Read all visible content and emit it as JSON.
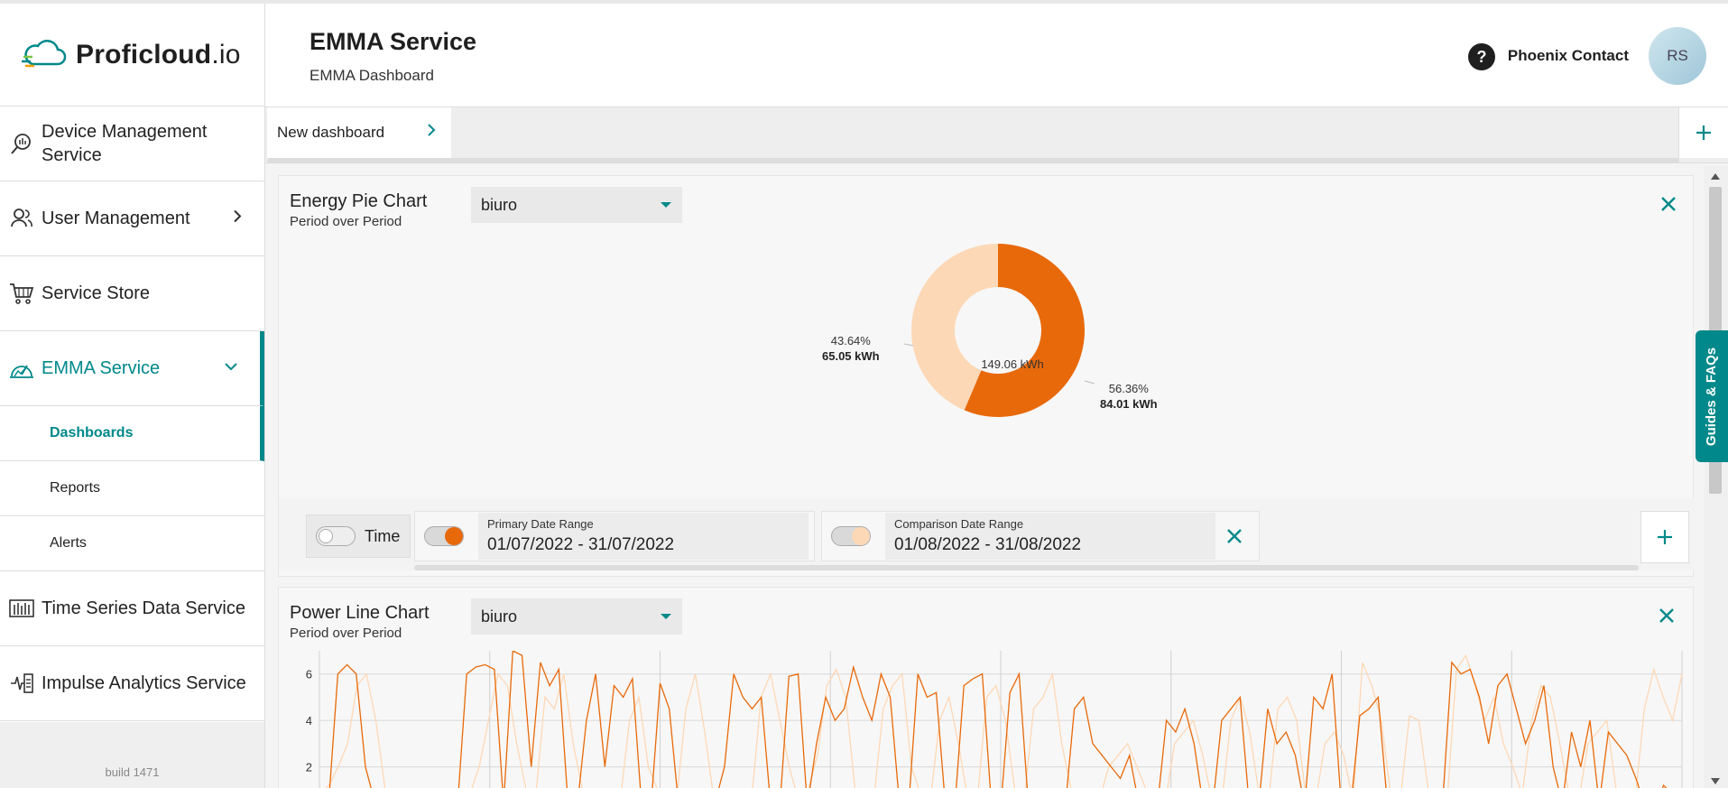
{
  "sidebar": {
    "logo_main": "Proficloud",
    "logo_suffix": ".io",
    "items": [
      {
        "label": "Device Management Service",
        "icon": "device-icon"
      },
      {
        "label": "User Management",
        "icon": "users-icon"
      },
      {
        "label": "Service Store",
        "icon": "cart-icon"
      },
      {
        "label": "EMMA Service",
        "icon": "gauge-icon"
      }
    ],
    "emma_subitems": [
      "Dashboards",
      "Reports",
      "Alerts"
    ],
    "more_items": [
      {
        "label": "Time Series Data Service",
        "icon": "bars-icon"
      },
      {
        "label": "Impulse Analytics Service",
        "icon": "analytics-icon"
      }
    ],
    "build": "build 1471"
  },
  "header": {
    "title": "EMMA Service",
    "subtitle": "EMMA Dashboard",
    "company": "Phoenix Contact",
    "avatar_initials": "RS",
    "help_label": "?"
  },
  "tabs": [
    {
      "label": "New dashboard"
    }
  ],
  "guides_label": "Guides & FAQs",
  "pie_card": {
    "title": "Energy Pie Chart",
    "subtitle": "Period over Period",
    "select_value": "biuro",
    "center_label": "149.06 kWh",
    "left_pct": "43.64%",
    "left_val": "65.05 kWh",
    "right_pct": "56.36%",
    "right_val": "84.01 kWh"
  },
  "controls": {
    "time_label": "Time",
    "primary_label": "Primary Date Range",
    "primary_value": "01/07/2022 - 31/07/2022",
    "comparison_label": "Comparison Date Range",
    "comparison_value": "01/08/2022 - 31/08/2022"
  },
  "line_card": {
    "title": "Power Line Chart",
    "subtitle": "Period over Period",
    "select_value": "biuro"
  },
  "chart_data": [
    {
      "type": "pie",
      "labels": [
        "01/07/2022 - 31/07/2022",
        "01/08/2022 - 31/08/2022"
      ],
      "values": [
        84.01,
        65.05
      ],
      "percentages": [
        56.36,
        43.64
      ],
      "colors": [
        "#e8690a",
        "#fdd8b6"
      ],
      "center": "149.06 kWh"
    },
    {
      "type": "line",
      "yticks": [
        2,
        4,
        6
      ],
      "ylim": [
        0,
        7
      ],
      "series": [
        {
          "color": "#e8690a",
          "values": [
            0.3,
            0.4,
            6,
            6.4,
            6,
            2,
            0.5,
            0.3,
            0.2,
            0.3,
            0.4,
            0.3,
            0.2,
            0.3,
            0.2,
            0.3,
            6,
            6.3,
            6.4,
            6.2,
            0.4,
            7,
            6.8,
            2,
            6.5,
            5.5,
            6.2,
            0.4,
            0.3,
            4,
            6,
            2,
            5.5,
            5,
            5.8,
            0.3,
            0.2,
            5.6,
            4.5,
            0.4,
            0.3,
            0.2,
            0.3,
            0.5,
            2,
            6,
            5,
            4.5,
            5,
            0.4,
            0.2,
            5.9,
            6,
            0.3,
            3,
            5,
            4,
            4.5,
            6.3,
            5,
            4,
            6,
            5,
            0.4,
            0.3,
            6,
            5,
            5.2,
            0.3,
            0.2,
            5.5,
            5.8,
            6,
            0.3,
            0.2,
            5.2,
            6,
            0.4,
            0.3,
            0.2,
            0.3,
            0.2,
            4.5,
            5,
            3,
            2.5,
            2,
            1.5,
            2.5,
            0.4,
            0.3,
            0.2,
            4,
            3.5,
            4.5,
            3,
            0.3,
            0.2,
            4,
            4.5,
            5,
            0.3,
            0.2,
            4.5,
            3,
            3.5,
            2.5,
            0.3,
            5,
            4.5,
            6,
            0.3,
            0.2,
            4.2,
            4.5,
            5,
            0.4,
            0.3,
            0.2,
            0.3,
            0.2,
            0.3,
            0.4,
            6.5,
            6,
            6.2,
            5,
            3,
            5.5,
            6,
            4.5,
            3,
            4,
            5.5,
            2,
            0.4,
            3.5,
            2,
            4,
            0.4,
            3.5,
            3,
            2.5,
            1.5,
            0.3,
            0.2,
            1.2,
            0.8,
            0.3
          ]
        },
        {
          "color": "#fdd8b6",
          "values": [
            0.8,
            1.2,
            2,
            3,
            5.5,
            6,
            4,
            1,
            0.5,
            0.6,
            0.4,
            0.5,
            0.7,
            0.4,
            0.5,
            0.6,
            0.8,
            2,
            4,
            6,
            5.5,
            3,
            1,
            0.6,
            5,
            4.5,
            6,
            3,
            1,
            0.5,
            0.4,
            0.6,
            0.5,
            4,
            5,
            2,
            1,
            0.6,
            0.5,
            4.5,
            6,
            3.5,
            0.5,
            0.4,
            0.3,
            0.5,
            0.6,
            5,
            6,
            4,
            2,
            0.5,
            1,
            2.5,
            5.5,
            6.2,
            5,
            1,
            0.5,
            0.6,
            4.5,
            5.5,
            6,
            2,
            0.8,
            0.5,
            4,
            5,
            3,
            0.6,
            0.5,
            5,
            5.5,
            4,
            1,
            0.5,
            4.5,
            5,
            6,
            3,
            1,
            0.5,
            0.4,
            0.6,
            2,
            2.5,
            3,
            2,
            1,
            0.5,
            0.4,
            3,
            3.5,
            4,
            2.5,
            0.5,
            0.4,
            4,
            5,
            3.5,
            0.8,
            0.5,
            4.5,
            5,
            4,
            0.6,
            0.5,
            3,
            3.5,
            2.5,
            0.5,
            6.5,
            5.5,
            4,
            0.8,
            0.5,
            4.2,
            4,
            1,
            0.6,
            0.5,
            6.2,
            6.8,
            5.5,
            4,
            5,
            3,
            2,
            0.8,
            4,
            5.5,
            5,
            3,
            0.8,
            0.5,
            3,
            3.5,
            4,
            1,
            0.6,
            0.5,
            4.5,
            6.2,
            5,
            4,
            6
          ]
        }
      ]
    }
  ]
}
